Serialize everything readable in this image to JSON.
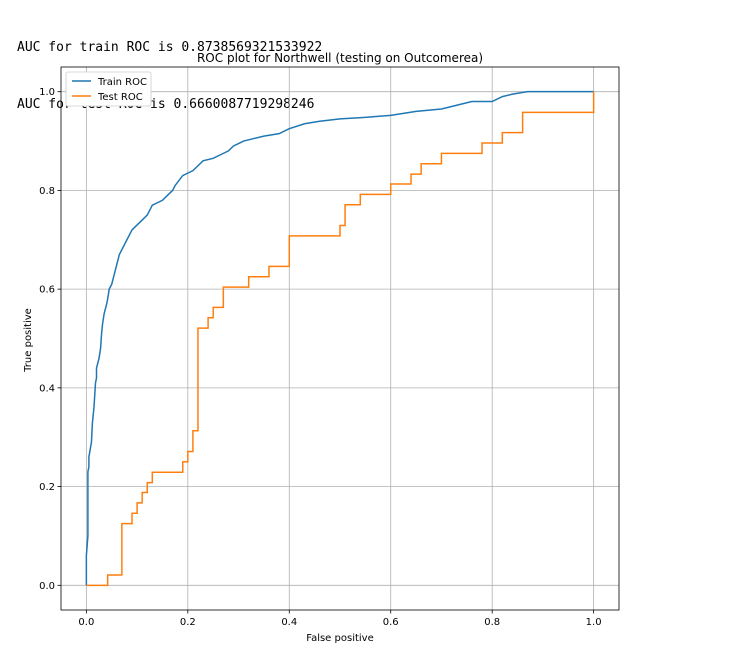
{
  "output": {
    "line1": "AUC for train ROC is 0.8738569321533922",
    "line2": "AUC for test ROC is 0.6660087719298246"
  },
  "chart_data": {
    "type": "line",
    "title": "ROC plot for Northwell (testing on Outcomerea)",
    "xlabel": "False positive",
    "ylabel": "True positive",
    "xlim": [
      -0.05,
      1.05
    ],
    "ylim": [
      -0.05,
      1.05
    ],
    "xticks": [
      0.0,
      0.2,
      0.4,
      0.6,
      0.8,
      1.0
    ],
    "yticks": [
      0.0,
      0.2,
      0.4,
      0.6,
      0.8,
      1.0
    ],
    "grid": true,
    "legend_position": "top-left",
    "series": [
      {
        "name": "Train ROC",
        "color": "#1f77b4",
        "step": false,
        "x": [
          0.0,
          0.0,
          0.003,
          0.003,
          0.005,
          0.005,
          0.01,
          0.012,
          0.015,
          0.018,
          0.02,
          0.02,
          0.025,
          0.028,
          0.03,
          0.032,
          0.035,
          0.04,
          0.042,
          0.045,
          0.05,
          0.055,
          0.06,
          0.065,
          0.07,
          0.075,
          0.08,
          0.085,
          0.09,
          0.1,
          0.11,
          0.12,
          0.13,
          0.14,
          0.15,
          0.16,
          0.17,
          0.175,
          0.19,
          0.2,
          0.21,
          0.22,
          0.23,
          0.25,
          0.27,
          0.28,
          0.29,
          0.3,
          0.31,
          0.33,
          0.35,
          0.38,
          0.4,
          0.43,
          0.46,
          0.5,
          0.55,
          0.6,
          0.65,
          0.7,
          0.74,
          0.76,
          0.8,
          0.82,
          0.84,
          0.87,
          0.9,
          0.95,
          1.0
        ],
        "y": [
          0.0,
          0.06,
          0.1,
          0.23,
          0.24,
          0.26,
          0.29,
          0.33,
          0.36,
          0.41,
          0.42,
          0.44,
          0.46,
          0.48,
          0.51,
          0.53,
          0.55,
          0.57,
          0.58,
          0.6,
          0.61,
          0.63,
          0.65,
          0.67,
          0.68,
          0.69,
          0.7,
          0.71,
          0.72,
          0.73,
          0.74,
          0.75,
          0.77,
          0.775,
          0.78,
          0.79,
          0.8,
          0.81,
          0.83,
          0.835,
          0.84,
          0.85,
          0.86,
          0.865,
          0.875,
          0.88,
          0.89,
          0.895,
          0.9,
          0.905,
          0.91,
          0.915,
          0.925,
          0.935,
          0.94,
          0.945,
          0.948,
          0.952,
          0.96,
          0.965,
          0.975,
          0.98,
          0.98,
          0.99,
          0.995,
          1.0,
          1.0,
          1.0,
          1.0
        ]
      },
      {
        "name": "Test ROC",
        "color": "#ff7f0e",
        "step": true,
        "x": [
          0.0,
          0.042,
          0.07,
          0.09,
          0.1,
          0.11,
          0.12,
          0.13,
          0.19,
          0.2,
          0.21,
          0.22,
          0.24,
          0.25,
          0.27,
          0.32,
          0.36,
          0.4,
          0.5,
          0.51,
          0.54,
          0.6,
          0.64,
          0.66,
          0.7,
          0.78,
          0.82,
          0.86,
          1.0
        ],
        "y": [
          0.0,
          0.021,
          0.125,
          0.146,
          0.167,
          0.188,
          0.208,
          0.229,
          0.25,
          0.271,
          0.313,
          0.521,
          0.542,
          0.563,
          0.604,
          0.625,
          0.646,
          0.708,
          0.729,
          0.771,
          0.792,
          0.813,
          0.833,
          0.854,
          0.875,
          0.896,
          0.917,
          0.958,
          0.979
        ]
      }
    ]
  }
}
